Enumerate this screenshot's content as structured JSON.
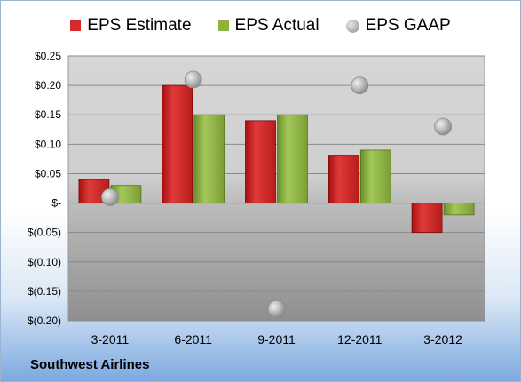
{
  "chart_data": {
    "type": "bar",
    "categories": [
      "3-2011",
      "6-2011",
      "9-2011",
      "12-2011",
      "3-2012"
    ],
    "series": [
      {
        "name": "EPS Estimate",
        "values": [
          0.04,
          0.2,
          0.14,
          0.08,
          -0.05
        ],
        "color": "#d42a2a",
        "marker": "bar"
      },
      {
        "name": "EPS Actual",
        "values": [
          0.03,
          0.15,
          0.15,
          0.09,
          -0.02
        ],
        "color": "#8cb43c",
        "marker": "bar"
      },
      {
        "name": "EPS GAAP",
        "values": [
          0.01,
          0.21,
          -0.18,
          0.2,
          0.13
        ],
        "color": "#a8a8a8",
        "marker": "circle"
      }
    ],
    "yticks": [
      0.25,
      0.2,
      0.15,
      0.1,
      0.05,
      0,
      -0.05,
      -0.1,
      -0.15,
      -0.2
    ],
    "ytick_labels": [
      "$0.25",
      "$0.20",
      "$0.15",
      "$0.10",
      "$0.05",
      "$-",
      "$(0.05)",
      "$(0.10)",
      "$(0.15)",
      "$(0.20)"
    ],
    "ylim": [
      -0.2,
      0.25
    ],
    "grid": true,
    "legend_position": "top-center"
  },
  "footer": {
    "company": "Southwest Airlines"
  }
}
